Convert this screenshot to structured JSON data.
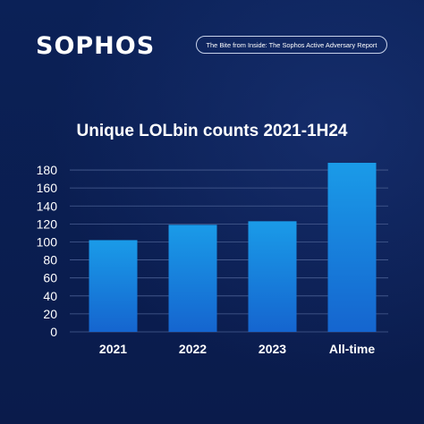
{
  "brand": {
    "logo_text": "SOPHOS"
  },
  "header": {
    "report_title": "The Bite from Inside: The Sophos Active Adversary Report"
  },
  "colors": {
    "background": "#0a1d4f",
    "bar_top": "#1a9be8",
    "bar_bottom": "#1565cf",
    "grid": "#4a5f92",
    "text": "#ffffff"
  },
  "chart_data": {
    "type": "bar",
    "title": "Unique LOLbin counts 2021-1H24",
    "categories": [
      "2021",
      "2022",
      "2023",
      "All-time"
    ],
    "values": [
      102,
      119,
      123,
      188
    ],
    "ylim": [
      0,
      190
    ],
    "yticks": [
      0,
      20,
      40,
      60,
      80,
      100,
      120,
      140,
      160,
      180
    ],
    "grid": true
  }
}
